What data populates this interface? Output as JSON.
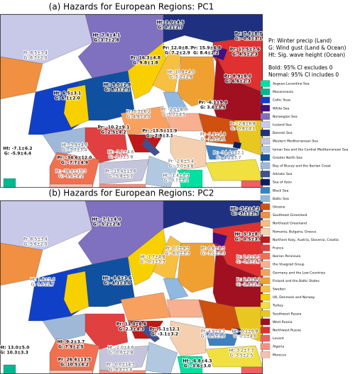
{
  "panels": [
    {
      "title": "(a) Hazards for European Regions: PC1",
      "labels": [
        {
          "lines": [
            "Ht: 3.0±4.5",
            "G: 0.2±2.7"
          ],
          "bold": true
        },
        {
          "lines": [
            "Ht: 7.4±4.1",
            "G: 3.7±2.8"
          ],
          "bold": true
        },
        {
          "lines": [
            "Pr: 6.5±3.4",
            "G: 6.3±2.0"
          ],
          "bold": false
        },
        {
          "lines": [
            "Ht: 9.0±2.8",
            "G: 8.1±2.1"
          ],
          "bold": true
        },
        {
          "lines": [
            "Ht: 6.5±3.1",
            "G: 6.1±2.0"
          ],
          "bold": true
        },
        {
          "lines": [
            "Pr: 16.3±4.8",
            "G: 9.8±1.8"
          ],
          "bold": true
        },
        {
          "lines": [
            "Pr: 12.0±8.7",
            "G: 7.2±2.9"
          ],
          "bold": true
        },
        {
          "lines": [
            "Pr: 15.9±6.8",
            "G: 8.4±2.2"
          ],
          "bold": true
        },
        {
          "lines": [
            "Ht: 10.8±4.0",
            "G: 5.2±2.8"
          ],
          "bold": false
        },
        {
          "lines": [
            "Pr: 7.4±8.7",
            "G: -0.4±3.1"
          ],
          "bold": true
        },
        {
          "lines": [
            "Pr: 17.5±7.6",
            "G: 4.5±2.3"
          ],
          "bold": true
        },
        {
          "lines": [
            "Pr: 8.9±8.0",
            "G: 6.6±2.3"
          ],
          "bold": true
        },
        {
          "lines": [
            "Pr: -2.1±8.0",
            "G: 5.7±4.5"
          ],
          "bold": false
        },
        {
          "lines": [
            "Pr: 3.3±6.2",
            "G: 4.8±4.0"
          ],
          "bold": false
        },
        {
          "lines": [
            "Pr: -6.1±9.0",
            "G: 3.6±3.5"
          ],
          "bold": true
        },
        {
          "lines": [
            "Pr: -2.8±6.8",
            "G: -0.8±4.1"
          ],
          "bold": false
        },
        {
          "lines": [
            "Pr: -10.2±9.1",
            "G: 2.5±4.2"
          ],
          "bold": true
        },
        {
          "lines": [
            "Pr: -13.5±11.9",
            "G: -2.8±3.1"
          ],
          "bold": true
        },
        {
          "lines": [
            "Pr: -1.9±4.8",
            "G: -1.9±4.1"
          ],
          "bold": false
        },
        {
          "lines": [
            "Ht: -7.1±6.2",
            "G: -5.9±4.4"
          ],
          "bold": true
        },
        {
          "lines": [
            "Ht: -3.9±4.6",
            "G: -3.7±3.4"
          ],
          "bold": false
        },
        {
          "lines": [
            "Pr: -34.6±12.0",
            "G: -7.7±4.9"
          ],
          "bold": true
        },
        {
          "lines": [
            "Ht: -3.1±4.6",
            "G: -2.3±3.8"
          ],
          "bold": false
        },
        {
          "lines": [
            "Pr: -38.0±15.3",
            "G: -8.4±4.2"
          ],
          "bold": false
        },
        {
          "lines": [
            "Pr: -13.4±13.6",
            "G: -5.8±5.7"
          ],
          "bold": false
        },
        {
          "lines": [
            "Pr: -2.6±5.4",
            "G: -3.0±4.8"
          ],
          "bold": false
        },
        {
          "lines": [
            "Pr: -14.4±12.1",
            "G: -4.2±3.7"
          ],
          "bold": false
        },
        {
          "lines": [
            "Ht: -1.4±4.3",
            "G: -0.7±3.2"
          ],
          "bold": false
        }
      ]
    },
    {
      "title": "(b) Hazards for European Regions: PC2",
      "labels": [
        {
          "lines": [
            "Ht: -7.1±4.0",
            "G: -5.2±2.4"
          ],
          "bold": true
        },
        {
          "lines": [
            "Ht: -5.2±4.2",
            "G: -3.1±2.5"
          ],
          "bold": true
        },
        {
          "lines": [
            "Pr: 6.5±3.4",
            "G: 5.6±2.0"
          ],
          "bold": false
        },
        {
          "lines": [
            "Ht: 5.3±8.7",
            "G: -0.5±3.0"
          ],
          "bold": true
        },
        {
          "lines": [
            "Pr: 2.0±9.3",
            "G: -0.8±2.7"
          ],
          "bold": false
        },
        {
          "lines": [
            "Pr: 2.9±8.2",
            "G: -2.8±2.9"
          ],
          "bold": false
        },
        {
          "lines": [
            "Pr: 0.7±9.3",
            "G: -6.0±3.3"
          ],
          "bold": false
        },
        {
          "lines": [
            "Pr: 0.8±8.3",
            "G: -3.1±3.3"
          ],
          "bold": false
        },
        {
          "lines": [
            "Ht: 1.8±3.6",
            "G: 0.6±2.7"
          ],
          "bold": false
        },
        {
          "lines": [
            "Ht: -4.6±3.6",
            "G: -4.1±3.0"
          ],
          "bold": true
        },
        {
          "lines": [
            "Ht: 1.7±4.8",
            "G: -0.1±3.3"
          ],
          "bold": false
        },
        {
          "lines": [
            "Pr: 13.0±8.6",
            "G: 2.3±4.3"
          ],
          "bold": true
        },
        {
          "lines": [
            "Pr: 5.1±12.1",
            "G: -3.1±3.2"
          ],
          "bold": true
        },
        {
          "lines": [
            "Pr: 4.9±9.3",
            "G: -0.5±3.0"
          ],
          "bold": false
        },
        {
          "lines": [
            "Ht: -0.1±6.8",
            "G: 0.1±4.0"
          ],
          "bold": false
        },
        {
          "lines": [
            "Ht: 13.0±5.0",
            "G: 10.3±3.3"
          ],
          "bold": true
        },
        {
          "lines": [
            "Ht: 9.2±3.7",
            "G: 7.9±2.5"
          ],
          "bold": true
        },
        {
          "lines": [
            "Pr: 26.4±13.5",
            "G: 10.5±4.2"
          ],
          "bold": true
        },
        {
          "lines": [
            "Ht: -2.0±4.6",
            "G: -0.6±2.8"
          ],
          "bold": false
        },
        {
          "lines": [
            "Pr: -0.0±14.3",
            "G: 9.4±5.4"
          ],
          "bold": false
        },
        {
          "lines": [
            "Ht: 3.2±7.3",
            "G: 3.5±2.5"
          ],
          "bold": false
        },
        {
          "lines": [
            "Ht: -6.8±4.3",
            "G: -3.6±3.0"
          ],
          "bold": true
        }
      ]
    }
  ],
  "key": [
    "Pr: Winter precip (Land)",
    "G: Wind gust (Land & Ocean)",
    "Ht: Sig. wave height (Ocean)",
    "Bold: 95% CI excludes 0",
    "Normal: 95% CI includes 0"
  ],
  "legend": [
    {
      "name": "Aegean-Levantine Sea",
      "color": "#00e0a0"
    },
    {
      "name": "Macaronesia",
      "color": "#00b890"
    },
    {
      "name": "Celtic Seas",
      "color": "#1040c8"
    },
    {
      "name": "White Sea",
      "color": "#401080"
    },
    {
      "name": "Norwegian Sea",
      "color": "#8070c0"
    },
    {
      "name": "Iceland Sea",
      "color": "#c8c8e8"
    },
    {
      "name": "Barents Sea",
      "color": "#203080"
    },
    {
      "name": "Western Mediterranean Sea",
      "color": "#c4c4dc"
    },
    {
      "name": "Ionian Sea and the Central Mediterranean Sea",
      "color": "#b0c8e0"
    },
    {
      "name": "Greater North Sea",
      "color": "#1050a0"
    },
    {
      "name": "Bay of Biscay and the Iberian Coast",
      "color": "#a0b8d8"
    },
    {
      "name": "Adriatic Sea",
      "color": "#405090"
    },
    {
      "name": "Sea of Azov",
      "color": "#082060"
    },
    {
      "name": "Black Sea",
      "color": "#4080c0"
    },
    {
      "name": "Baltic Sea",
      "color": "#90b8e0"
    },
    {
      "name": "Ukraine",
      "color": "#d05010"
    },
    {
      "name": "Southeast Greenland",
      "color": "#f09040"
    },
    {
      "name": "Northeast Greenland",
      "color": "#f0c080"
    },
    {
      "name": "Romania, Bulgaria, Greece",
      "color": "#f4d0b0"
    },
    {
      "name": "Northern Italy, Austria, Slovenia, Croatia",
      "color": "#c01818"
    },
    {
      "name": "France",
      "color": "#e04040"
    },
    {
      "name": "Iberian Peninsula",
      "color": "#f07050"
    },
    {
      "name": "the Visegrád Group",
      "color": "#f8b090"
    },
    {
      "name": "Germany and the Low Countries",
      "color": "#f8a060"
    },
    {
      "name": "Finland and the Baltic States",
      "color": "#f0a030"
    },
    {
      "name": "Sweden",
      "color": "#f8c040"
    },
    {
      "name": "UK, Denmark and Norway",
      "color": "#f8d000"
    },
    {
      "name": "Turkey",
      "color": "#f0e040"
    },
    {
      "name": "Southwest Russia",
      "color": "#e8c820"
    },
    {
      "name": "West Russia",
      "color": "#a01020"
    },
    {
      "name": "Northwest Russia",
      "color": "#e03030"
    },
    {
      "name": "Levant",
      "color": "#f06060"
    },
    {
      "name": "Algeria",
      "color": "#f89080"
    },
    {
      "name": "Morocco",
      "color": "#f8c0b0"
    }
  ]
}
